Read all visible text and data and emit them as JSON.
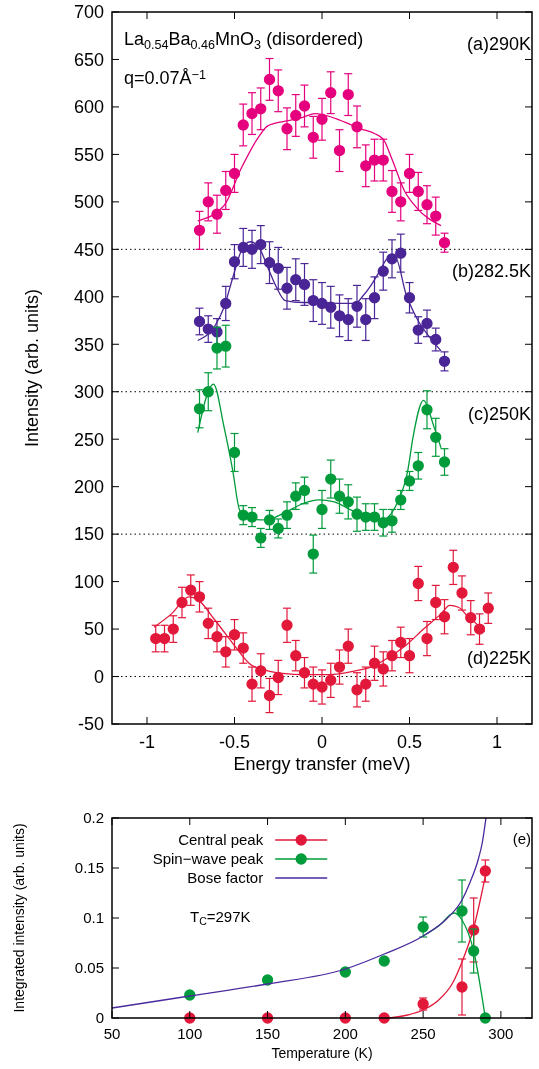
{
  "chart_data": [
    {
      "type": "scatter",
      "xlabel": "Energy transfer (meV)",
      "ylabel": "Intensity (arb. units)",
      "xlim": [
        -1.2,
        1.2
      ],
      "xticks": [
        -1,
        -0.5,
        0,
        0.5,
        1
      ],
      "ylim": [
        -50,
        700
      ],
      "yticks": [
        -50,
        0,
        50,
        100,
        150,
        200,
        250,
        300,
        350,
        400,
        450,
        500,
        550,
        600,
        650,
        700
      ],
      "annotations": [
        "La$_{0.54}$Ba$_{0.46}$MnO$_{3}$ (disordered)",
        "q=0.07Å$^{−1}$",
        "(a)290K",
        "(b)282.5K",
        "(c)250K",
        "(d)225K"
      ],
      "ref_lines": [
        {
          "axis": "y",
          "value": 450,
          "line_style": "dotted",
          "color": "#000000"
        },
        {
          "axis": "y",
          "value": 300,
          "line_style": "dotted",
          "color": "#000000"
        },
        {
          "axis": "y",
          "value": 150,
          "line_style": "dotted",
          "color": "#000000"
        },
        {
          "axis": "y",
          "value": 0,
          "line_style": "dotted",
          "color": "#000000"
        }
      ],
      "series": [
        {
          "type": "scatter",
          "color": "#e5007d",
          "marker": "circle",
          "x": [
            -0.7,
            -0.65,
            -0.6,
            -0.55,
            -0.5,
            -0.45,
            -0.4,
            -0.35,
            -0.3,
            -0.25,
            -0.2,
            -0.15,
            -0.1,
            -0.05,
            0,
            0.05,
            0.1,
            0.15,
            0.2,
            0.25,
            0.3,
            0.35,
            0.4,
            0.45,
            0.5,
            0.55,
            0.6,
            0.65,
            0.7
          ],
          "values": [
            470,
            500,
            487,
            512,
            530,
            581,
            593,
            598,
            629,
            617,
            577,
            591,
            601,
            568,
            587,
            615,
            554,
            613,
            579,
            538,
            544,
            544,
            511,
            500,
            530,
            511,
            497,
            485,
            457
          ],
          "errors": [
            20,
            20,
            20,
            20,
            20,
            22,
            22,
            22,
            22,
            22,
            22,
            22,
            22,
            22,
            22,
            22,
            22,
            22,
            22,
            22,
            22,
            22,
            22,
            20,
            20,
            20,
            20,
            20,
            10
          ]
        },
        {
          "type": "line",
          "color": "#e5007d",
          "x": [
            -0.71,
            -0.56,
            -0.46,
            -0.36,
            -0.31,
            -0.21,
            -0.11,
            -0.04,
            0.02,
            0.13,
            0.22,
            0.3,
            0.35,
            0.4,
            0.47,
            0.54,
            0.68
          ],
          "values": [
            480,
            496,
            536,
            569,
            580,
            585,
            589,
            593,
            591,
            584,
            577,
            572,
            566,
            545,
            512,
            494,
            475
          ]
        },
        {
          "type": "scatter",
          "color": "#4a2596",
          "marker": "circle",
          "x": [
            -0.7,
            -0.65,
            -0.6,
            -0.55,
            -0.5,
            -0.45,
            -0.4,
            -0.35,
            -0.3,
            -0.25,
            -0.2,
            -0.15,
            -0.1,
            -0.05,
            0,
            0.05,
            0.1,
            0.15,
            0.2,
            0.25,
            0.3,
            0.35,
            0.4,
            0.45,
            0.5,
            0.55,
            0.6,
            0.65,
            0.7
          ],
          "values": [
            374,
            366,
            363,
            393,
            437,
            452,
            450,
            455,
            436,
            430,
            409,
            418,
            413,
            396,
            393,
            389,
            380,
            376,
            390,
            376,
            399,
            427,
            440,
            446,
            399,
            365,
            372,
            355,
            332
          ],
          "errors": [
            14,
            14,
            14,
            18,
            18,
            20,
            20,
            20,
            22,
            22,
            22,
            22,
            22,
            22,
            22,
            22,
            22,
            22,
            22,
            22,
            22,
            20,
            20,
            20,
            16,
            14,
            14,
            12,
            10
          ]
        },
        {
          "type": "line",
          "color": "#4a2596",
          "x": [
            -0.71,
            -0.61,
            -0.56,
            -0.51,
            -0.46,
            -0.41,
            -0.36,
            -0.31,
            -0.26,
            -0.21,
            -0.11,
            -0.02,
            0.09,
            0.19,
            0.23,
            0.28,
            0.33,
            0.38,
            0.42,
            0.48,
            0.54,
            0.63,
            0.68
          ],
          "values": [
            354,
            370,
            389,
            420,
            449,
            458,
            452,
            431,
            410,
            396,
            394,
            394,
            393,
            393,
            400,
            412,
            427,
            441,
            441,
            403,
            378,
            354,
            343
          ]
        },
        {
          "type": "scatter",
          "color": "#009b3a",
          "marker": "circle",
          "x": [
            -0.7,
            -0.65,
            -0.6,
            -0.55,
            -0.5,
            -0.45,
            -0.4,
            -0.35,
            -0.3,
            -0.25,
            -0.2,
            -0.15,
            -0.1,
            -0.05,
            0,
            0.05,
            0.1,
            0.15,
            0.2,
            0.25,
            0.3,
            0.35,
            0.4,
            0.45,
            0.5,
            0.55,
            0.6,
            0.65,
            0.7
          ],
          "values": [
            282,
            300,
            346,
            348,
            236,
            170,
            168,
            146,
            165,
            156,
            170,
            190,
            196,
            129,
            176,
            208,
            190,
            184,
            171,
            168,
            168,
            162,
            164,
            186,
            206,
            222,
            281,
            252,
            226
          ],
          "errors": [
            20,
            20,
            22,
            22,
            20,
            10,
            10,
            10,
            10,
            10,
            14,
            14,
            14,
            20,
            20,
            20,
            18,
            18,
            18,
            14,
            14,
            14,
            12,
            10,
            10,
            14,
            20,
            20,
            14
          ]
        },
        {
          "type": "line",
          "color": "#009b3a",
          "x": [
            -0.71,
            -0.62,
            -0.56,
            -0.51,
            -0.47,
            -0.41,
            -0.32,
            -0.21,
            -0.11,
            -0.02,
            0.07,
            0.17,
            0.26,
            0.35,
            0.43,
            0.49,
            0.52,
            0.58,
            0.64,
            0.68
          ],
          "values": [
            257,
            308,
            263,
            217,
            175,
            166,
            165,
            173,
            182,
            186,
            184,
            175,
            168,
            166,
            183,
            217,
            252,
            291,
            263,
            241
          ]
        },
        {
          "type": "scatter",
          "color": "#e2183a",
          "marker": "circle",
          "x": [
            -0.95,
            -0.9,
            -0.85,
            -0.8,
            -0.75,
            -0.7,
            -0.65,
            -0.6,
            -0.55,
            -0.5,
            -0.45,
            -0.4,
            -0.35,
            -0.3,
            -0.25,
            -0.2,
            -0.15,
            -0.1,
            -0.05,
            0,
            0.05,
            0.1,
            0.15,
            0.2,
            0.25,
            0.3,
            0.35,
            0.4,
            0.45,
            0.5,
            0.55,
            0.6,
            0.65,
            0.7,
            0.75,
            0.8,
            0.85,
            0.9,
            0.95
          ],
          "values": [
            40,
            40,
            50,
            78,
            91,
            84,
            56,
            42,
            26,
            44,
            30,
            -8,
            6,
            -20,
            -1,
            54,
            22,
            4,
            -8,
            -11,
            -4,
            10,
            32,
            -14,
            -8,
            14,
            8,
            22,
            36,
            22,
            98,
            40,
            78,
            63,
            115,
            88,
            62,
            50,
            72
          ],
          "errors": [
            14,
            14,
            14,
            16,
            16,
            16,
            16,
            16,
            16,
            16,
            16,
            18,
            18,
            18,
            18,
            18,
            16,
            16,
            18,
            18,
            18,
            18,
            18,
            18,
            18,
            18,
            18,
            16,
            16,
            18,
            18,
            18,
            18,
            18,
            18,
            18,
            18,
            16,
            16
          ]
        },
        {
          "type": "line",
          "color": "#e2183a",
          "x": [
            -0.96,
            -0.86,
            -0.76,
            -0.71,
            -0.61,
            -0.51,
            -0.41,
            -0.31,
            -0.21,
            -0.11,
            0.04,
            0.19,
            0.28,
            0.38,
            0.48,
            0.58,
            0.68,
            0.73,
            0.78,
            0.83,
            0.88,
            0.93
          ],
          "values": [
            52,
            66,
            84,
            81,
            59,
            35,
            13,
            6,
            3,
            2,
            2,
            6,
            10,
            20,
            33,
            50,
            66,
            75,
            73,
            64,
            56,
            47
          ]
        }
      ]
    },
    {
      "type": "scatter",
      "xlabel": "Temperature (K)",
      "ylabel": "Integrated intensity (arb. units)",
      "xlim": [
        50,
        320
      ],
      "xticks": [
        50,
        100,
        150,
        200,
        250,
        300
      ],
      "ylim": [
        0,
        0.2
      ],
      "yticks": [
        0,
        0.05,
        0.1,
        0.15,
        0.2
      ],
      "legend": "top",
      "annotations": [
        "(e)",
        "T$_{C}$=297K"
      ],
      "series": [
        {
          "type": "scatter",
          "name": "Central peak",
          "color": "#e2183a",
          "marker": "circle",
          "x": [
            100,
            150,
            200,
            225,
            250,
            275,
            282.5,
            290
          ],
          "values": [
            0,
            0,
            0,
            0,
            0.014,
            0.031,
            0.088,
            0.147
          ],
          "errors": [
            null,
            null,
            null,
            null,
            0.006,
            0.028,
            0.032,
            0.011
          ]
        },
        {
          "type": "line",
          "color": "#e2183a",
          "x": [
            228,
            240,
            250,
            260,
            269,
            275,
            282.5,
            290
          ],
          "values": [
            0,
            0.003,
            0.008,
            0.018,
            0.035,
            0.056,
            0.09,
            0.142
          ]
        },
        {
          "type": "scatter",
          "name": "Spin−wave peak",
          "color": "#009b3a",
          "marker": "circle",
          "x": [
            100,
            150,
            200,
            225,
            250,
            275,
            282.5,
            290
          ],
          "values": [
            0.023,
            0.038,
            0.046,
            0.057,
            0.091,
            0.107,
            0.067,
            0
          ],
          "errors": [
            null,
            null,
            null,
            null,
            0.01,
            0.031,
            0.022,
            null
          ]
        },
        {
          "type": "line",
          "color": "#009b3a",
          "x": [
            250,
            260,
            270,
            275,
            282.5,
            290
          ],
          "values": [
            0.082,
            0.092,
            0.105,
            0.098,
            0.067,
            0
          ]
        },
        {
          "type": "line",
          "name": "Bose factor",
          "color": "#4b2a9e",
          "x": [
            50,
            100,
            150,
            200,
            225,
            250,
            265,
            275,
            280,
            285.7,
            288,
            290.4
          ],
          "values": [
            0.01,
            0.022,
            0.034,
            0.049,
            0.064,
            0.082,
            0.099,
            0.118,
            0.135,
            0.16,
            0.175,
            0.2
          ]
        }
      ]
    }
  ]
}
